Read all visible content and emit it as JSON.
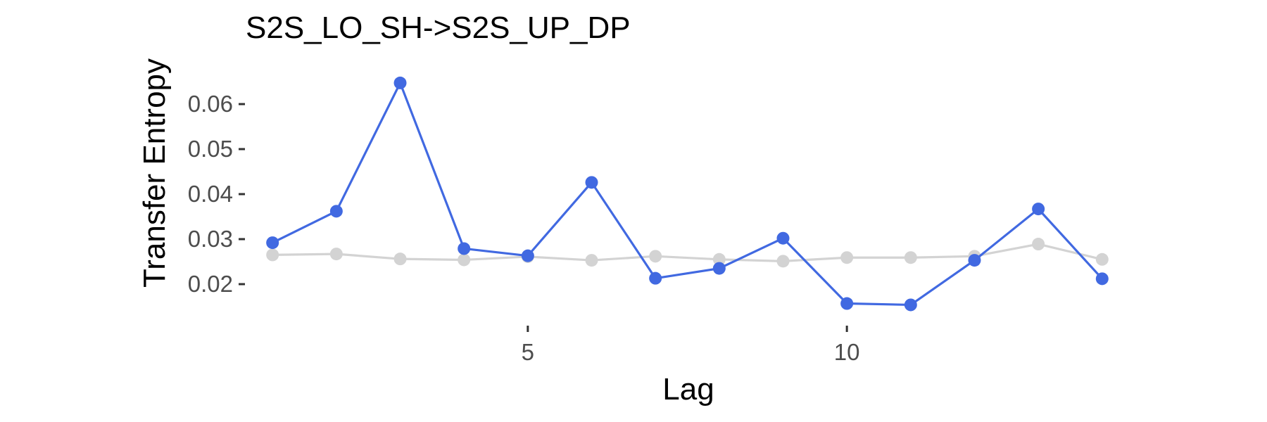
{
  "chart_data": {
    "type": "line",
    "title": "S2S_LO_SH->S2S_UP_DP",
    "xlabel": "Lag",
    "ylabel": "Transfer Entropy",
    "x": [
      1,
      2,
      3,
      4,
      5,
      6,
      7,
      8,
      9,
      10,
      11,
      12,
      13,
      14
    ],
    "xlim": [
      0.7,
      14.3
    ],
    "ylim": [
      0.0125,
      0.0675
    ],
    "xticks": [
      5,
      10
    ],
    "yticks": [
      0.02,
      0.03,
      0.04,
      0.05,
      0.06
    ],
    "xtick_labels": [
      "5",
      "10"
    ],
    "ytick_labels": [
      "0.02",
      "0.03",
      "0.04",
      "0.05",
      "0.06"
    ],
    "grid": false,
    "legend": "none",
    "series": [
      {
        "color": "#4169e1",
        "values": [
          0.0292,
          0.0362,
          0.0647,
          0.0279,
          0.0263,
          0.0426,
          0.0213,
          0.0235,
          0.0302,
          0.0157,
          0.0154,
          0.0253,
          0.0367,
          0.0212
        ]
      },
      {
        "color": "#d3d3d3",
        "values": [
          0.0265,
          0.0267,
          0.0256,
          0.0254,
          0.0261,
          0.0253,
          0.0262,
          0.0255,
          0.0251,
          0.0259,
          0.0259,
          0.0262,
          0.0289,
          0.0255
        ]
      }
    ]
  }
}
